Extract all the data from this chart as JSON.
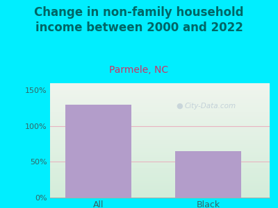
{
  "title": "Change in non-family household\nincome between 2000 and 2022",
  "subtitle": "Parmele, NC",
  "categories": [
    "All",
    "Black"
  ],
  "values": [
    130,
    65
  ],
  "bar_color": "#b39dca",
  "title_fontsize": 12,
  "subtitle_fontsize": 10,
  "subtitle_color": "#cc3366",
  "title_color": "#006666",
  "tick_label_color": "#336666",
  "xlabel_color": "#336666",
  "ylim": [
    0,
    160
  ],
  "yticks": [
    0,
    50,
    100,
    150
  ],
  "yticklabels": [
    "0%",
    "50%",
    "100%",
    "150%"
  ],
  "background_outer": "#00eeff",
  "background_plot_bottom": "#d4edda",
  "background_plot_top": "#f0f5ee",
  "grid_color": "#e8b4c0",
  "watermark": "City-Data.com",
  "watermark_color": "#aabbcc"
}
